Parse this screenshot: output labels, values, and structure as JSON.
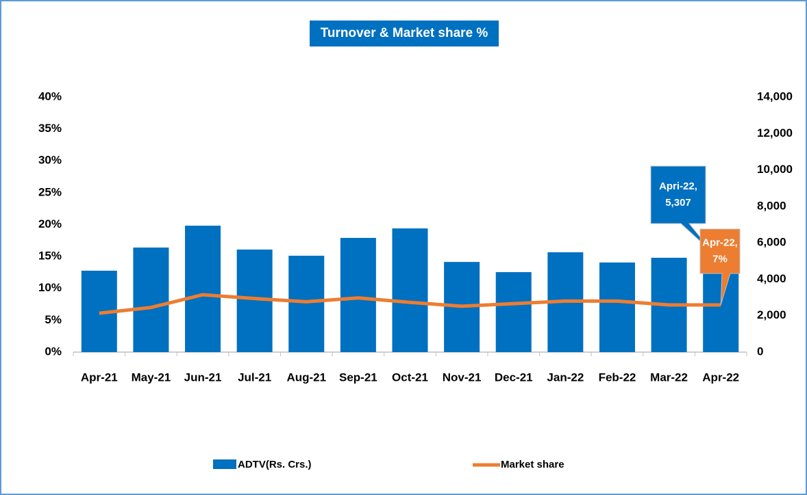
{
  "chart_data": {
    "type": "bar-line",
    "title": "Turnover & Market share %",
    "categories": [
      "Apr-21",
      "May-21",
      "Jun-21",
      "Jul-21",
      "Aug-21",
      "Sep-21",
      "Oct-21",
      "Nov-21",
      "Dec-21",
      "Jan-22",
      "Feb-22",
      "Mar-22",
      "Apr-22"
    ],
    "series": [
      {
        "name": "ADTV(Rs. Crs.)",
        "type": "bar",
        "color": "#0070c0",
        "axis": "y2",
        "values": [
          4470,
          5740,
          6940,
          5630,
          5290,
          6270,
          6790,
          4950,
          4390,
          5480,
          4920,
          5180,
          5307
        ]
      },
      {
        "name": "Market share",
        "type": "line",
        "color": "#ed7d31",
        "axis": "y",
        "values": [
          6.1,
          7.0,
          9.0,
          8.4,
          7.9,
          8.5,
          7.8,
          7.2,
          7.6,
          8.0,
          8.0,
          7.4,
          7.4
        ]
      }
    ],
    "ylim": [
      0,
      40
    ],
    "yticks": [
      {
        "value": 0,
        "label": "0%"
      },
      {
        "value": 5,
        "label": "5%"
      },
      {
        "value": 10,
        "label": "10%"
      },
      {
        "value": 15,
        "label": "15%"
      },
      {
        "value": 20,
        "label": "20%"
      },
      {
        "value": 25,
        "label": "25%"
      },
      {
        "value": 30,
        "label": "30%"
      },
      {
        "value": 35,
        "label": "35%"
      },
      {
        "value": 40,
        "label": "40%"
      }
    ],
    "y2lim": [
      0,
      14000
    ],
    "y2ticks": [
      0,
      {
        "value": 2000,
        "label": "2,000"
      },
      {
        "value": 4000,
        "label": "4,000"
      },
      {
        "value": 6000,
        "label": "6,000"
      },
      {
        "value": 8000,
        "label": "8,000"
      },
      {
        "value": 10000,
        "label": "10,000"
      },
      {
        "value": 12000,
        "label": "12,000"
      },
      {
        "value": 14000,
        "label": "14,000"
      }
    ],
    "annotations": [
      {
        "text": [
          "Apri-22,",
          "5,307"
        ]
      },
      {
        "text": [
          "Apr-22,",
          "7%"
        ]
      }
    ],
    "legend": "bottom"
  }
}
